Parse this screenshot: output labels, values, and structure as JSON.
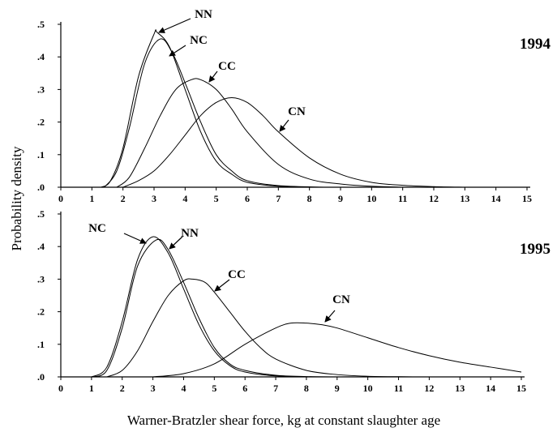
{
  "ylabel": "Probability density",
  "xlabel": "Warner-Bratzler shear force, kg at constant slaughter age",
  "chart_data": [
    {
      "type": "line",
      "title": "1994",
      "xlim": [
        0,
        15
      ],
      "ylim": [
        0,
        0.5
      ],
      "x_ticks": [
        "0",
        "1",
        "2",
        "3",
        "4",
        "5",
        "6",
        "7",
        "8",
        "9",
        "10",
        "11",
        "12",
        "13",
        "14",
        "15"
      ],
      "y_ticks": [
        ".0",
        ".1",
        ".2",
        ".3",
        ".4",
        ".5"
      ],
      "series": [
        {
          "name": "NN",
          "x": [
            1.3,
            1.6,
            2.0,
            2.5,
            3.0,
            3.1,
            3.5,
            4.0,
            4.5,
            5.0,
            5.5,
            6.0,
            7.0,
            8.0
          ],
          "values": [
            0.0,
            0.02,
            0.12,
            0.34,
            0.47,
            0.475,
            0.43,
            0.3,
            0.17,
            0.08,
            0.04,
            0.015,
            0.003,
            0.0
          ]
        },
        {
          "name": "NC",
          "x": [
            1.4,
            1.8,
            2.2,
            2.7,
            3.2,
            3.6,
            4.0,
            4.5,
            5.0,
            5.5,
            6.0,
            7.0,
            8.5
          ],
          "values": [
            0.0,
            0.05,
            0.18,
            0.38,
            0.455,
            0.41,
            0.32,
            0.2,
            0.1,
            0.05,
            0.02,
            0.005,
            0.0
          ]
        },
        {
          "name": "CC",
          "x": [
            1.8,
            2.2,
            2.7,
            3.2,
            3.7,
            4.2,
            4.5,
            5.0,
            5.5,
            6.0,
            7.0,
            8.0,
            9.0,
            10.0,
            11.0
          ],
          "values": [
            0.0,
            0.03,
            0.12,
            0.22,
            0.3,
            0.33,
            0.33,
            0.3,
            0.24,
            0.17,
            0.07,
            0.025,
            0.01,
            0.003,
            0.0
          ]
        },
        {
          "name": "CN",
          "x": [
            2.0,
            2.5,
            3.0,
            3.5,
            4.0,
            4.5,
            5.0,
            5.5,
            6.0,
            6.5,
            7.0,
            8.0,
            9.0,
            10.0,
            11.0,
            12.0,
            13.0
          ],
          "values": [
            0.0,
            0.02,
            0.05,
            0.1,
            0.16,
            0.22,
            0.26,
            0.275,
            0.26,
            0.22,
            0.17,
            0.09,
            0.04,
            0.015,
            0.006,
            0.002,
            0.0
          ]
        }
      ],
      "annotations": [
        "NN",
        "NC",
        "CC",
        "CN",
        "1994"
      ]
    },
    {
      "type": "line",
      "title": "1995",
      "xlim": [
        0,
        15
      ],
      "ylim": [
        0,
        0.5
      ],
      "x_ticks": [
        "0",
        "1",
        "2",
        "3",
        "4",
        "5",
        "6",
        "7",
        "8",
        "9",
        "10",
        "11",
        "12",
        "13",
        "14",
        "15"
      ],
      "y_ticks": [
        ".0",
        ".1",
        ".2",
        ".3",
        ".4",
        ".5"
      ],
      "series": [
        {
          "name": "NC",
          "x": [
            1.0,
            1.5,
            2.0,
            2.5,
            3.0,
            3.5,
            4.0,
            4.5,
            5.0,
            5.5,
            6.0,
            7.0,
            8.0
          ],
          "values": [
            0.0,
            0.03,
            0.17,
            0.36,
            0.43,
            0.38,
            0.27,
            0.16,
            0.08,
            0.035,
            0.015,
            0.003,
            0.0
          ]
        },
        {
          "name": "NN",
          "x": [
            1.0,
            1.5,
            2.0,
            2.5,
            3.1,
            3.5,
            4.0,
            4.5,
            5.0,
            5.5,
            6.0,
            7.0,
            8.0,
            9.0
          ],
          "values": [
            0.0,
            0.02,
            0.15,
            0.34,
            0.42,
            0.39,
            0.29,
            0.18,
            0.09,
            0.04,
            0.02,
            0.005,
            0.001,
            0.0
          ]
        },
        {
          "name": "CC",
          "x": [
            1.5,
            2.0,
            2.5,
            3.0,
            3.5,
            4.0,
            4.3,
            4.7,
            5.0,
            5.5,
            6.0,
            6.5,
            7.0,
            8.0,
            9.0,
            10.0,
            11.0,
            11.6
          ],
          "values": [
            0.0,
            0.02,
            0.08,
            0.17,
            0.25,
            0.295,
            0.3,
            0.29,
            0.26,
            0.2,
            0.14,
            0.09,
            0.055,
            0.02,
            0.007,
            0.002,
            0.0005,
            0.0
          ]
        },
        {
          "name": "CN",
          "x": [
            3.0,
            4.0,
            5.0,
            6.0,
            7.0,
            7.5,
            8.0,
            8.5,
            9.0,
            10.0,
            11.0,
            12.0,
            13.0,
            14.0,
            15.0
          ],
          "values": [
            0.0,
            0.01,
            0.04,
            0.1,
            0.15,
            0.165,
            0.165,
            0.16,
            0.15,
            0.12,
            0.09,
            0.065,
            0.045,
            0.03,
            0.015
          ]
        }
      ],
      "annotations": [
        "NC",
        "NN",
        "CC",
        "CN",
        "1995"
      ]
    }
  ]
}
